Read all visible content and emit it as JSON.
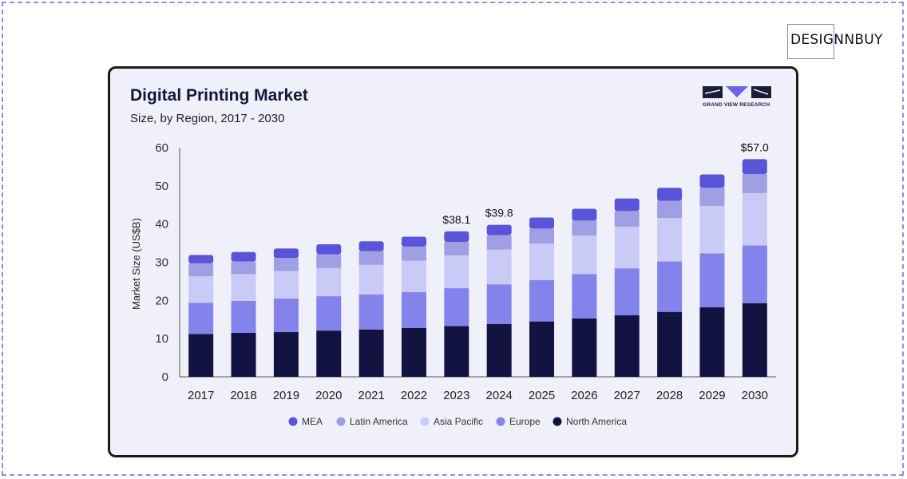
{
  "brand": {
    "label": "DESIGNNBUY"
  },
  "source_logo": {
    "label": "GRAND VIEW RESEARCH"
  },
  "colors": {
    "MEA": "#5a55d8",
    "Latin America": "#a09fe3",
    "Asia Pacific": "#cacaf7",
    "Europe": "#8483ec",
    "North America": "#121340"
  },
  "chart_data": {
    "type": "bar",
    "stacked": true,
    "title": "Digital Printing Market",
    "subtitle": "Size, by Region, 2017 - 2030",
    "xlabel": "",
    "ylabel": "Market Size (US$B)",
    "ylim": [
      0,
      60
    ],
    "yticks": [
      0,
      10,
      20,
      30,
      40,
      50,
      60
    ],
    "grid": false,
    "legend_position": "bottom",
    "categories": [
      "2017",
      "2018",
      "2019",
      "2020",
      "2021",
      "2022",
      "2023",
      "2024",
      "2025",
      "2026",
      "2027",
      "2028",
      "2029",
      "2030"
    ],
    "series": [
      {
        "name": "North America",
        "values": [
          11.2,
          11.5,
          11.7,
          12.1,
          12.4,
          12.8,
          13.3,
          13.8,
          14.5,
          15.3,
          16.1,
          17.0,
          18.2,
          19.3
        ]
      },
      {
        "name": "Europe",
        "values": [
          8.2,
          8.4,
          8.8,
          9.0,
          9.2,
          9.4,
          9.9,
          10.4,
          10.8,
          11.6,
          12.3,
          13.2,
          14.1,
          15.1
        ]
      },
      {
        "name": "Asia Pacific",
        "values": [
          6.9,
          7.0,
          7.2,
          7.4,
          7.7,
          8.2,
          8.6,
          9.1,
          9.6,
          10.1,
          10.9,
          11.4,
          12.4,
          13.7
        ]
      },
      {
        "name": "Latin America",
        "values": [
          3.4,
          3.3,
          3.4,
          3.6,
          3.6,
          3.7,
          3.5,
          3.8,
          3.9,
          3.9,
          4.1,
          4.5,
          4.8,
          5.0
        ]
      },
      {
        "name": "MEA",
        "values": [
          2.2,
          2.5,
          2.5,
          2.6,
          2.6,
          2.6,
          2.8,
          2.7,
          2.9,
          3.1,
          3.3,
          3.4,
          3.5,
          3.9
        ]
      }
    ],
    "legend_order": [
      "MEA",
      "Latin America",
      "Asia Pacific",
      "Europe",
      "North America"
    ],
    "annotations": [
      {
        "category": "2023",
        "label": "$38.1",
        "value": 38.1
      },
      {
        "category": "2024",
        "label": "$39.8",
        "value": 39.8
      },
      {
        "category": "2030",
        "label": "$57.0",
        "value": 57.0
      }
    ]
  }
}
